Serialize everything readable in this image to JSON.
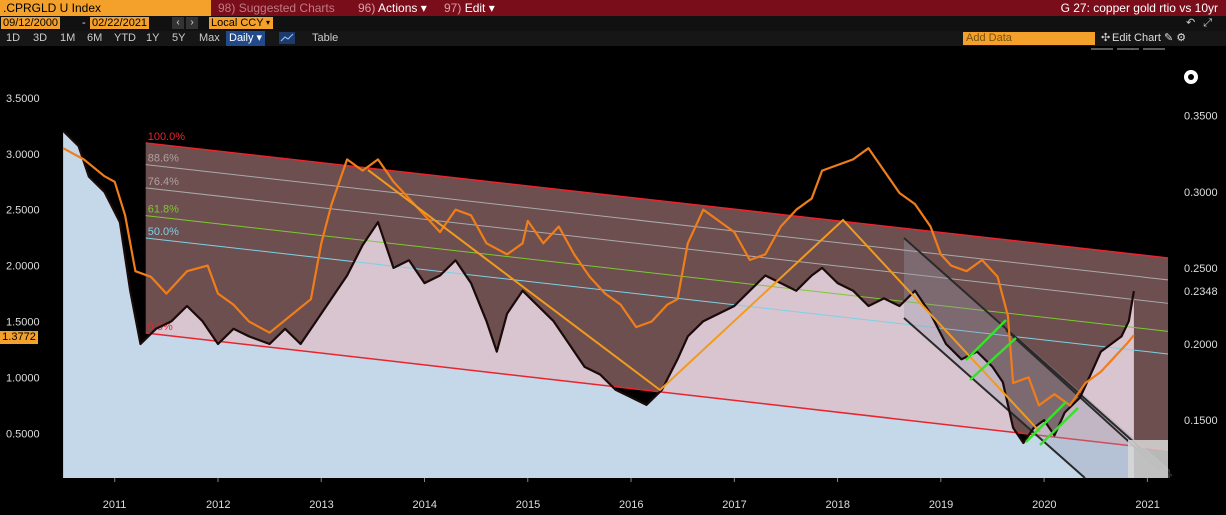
{
  "header": {
    "ticker": ".CPRGLD U Index",
    "suggested": "Suggested Charts",
    "suggested_num": "98)",
    "actions": "Actions",
    "actions_num": "96)",
    "edit": "Edit",
    "edit_num": "97)",
    "chart_title": "G 27: copper gold rtio vs 10yr"
  },
  "toolbar": {
    "start_date": "09/12/2000",
    "end_date": "02/22/2021",
    "currency": "Local CCY",
    "periods": [
      "1D",
      "3D",
      "1M",
      "6M",
      "YTD",
      "1Y",
      "5Y",
      "Max"
    ],
    "frequency": "Daily",
    "table": "Table",
    "add_data": "Add Data",
    "edit_chart": "Edit Chart",
    "current_value": "1.3772"
  },
  "colors": {
    "copper_gold_ratio": "#f07d1a",
    "ten_year_yield": "#1a0a0a",
    "channel": "#e8242e",
    "fib_61_8": "#7ec832",
    "fib_50": "#7fd0e6",
    "trendline": "#f29a1e",
    "wedge": "#2a2a2a",
    "green_marks": "#39e02b"
  },
  "chart_data": {
    "type": "line",
    "x_ticks": [
      "2011",
      "2012",
      "2013",
      "2014",
      "2015",
      "2016",
      "2017",
      "2018",
      "2019",
      "2020",
      "2021"
    ],
    "left_axis": {
      "ticks": [
        "3.5000",
        "3.0000",
        "2.5000",
        "2.0000",
        "1.5000",
        "1.0000",
        "0.5000"
      ],
      "last_value": "1.3772"
    },
    "right_axis": {
      "ticks": [
        "0.3500",
        "0.3000",
        "0.2500",
        "0.2348",
        "0.2000",
        "0.1500"
      ],
      "last_value": "0.2348"
    },
    "fib_levels": [
      "100.0%",
      "88.6%",
      "76.4%",
      "61.8%",
      "50.0%",
      "0.0%"
    ],
    "series": [
      {
        "color_key": "copper_gold_ratio",
        "points": [
          [
            2010.5,
            3.05
          ],
          [
            2010.7,
            2.95
          ],
          [
            2010.9,
            2.8
          ],
          [
            2011.0,
            2.75
          ],
          [
            2011.1,
            2.45
          ],
          [
            2011.2,
            1.95
          ],
          [
            2011.35,
            1.9
          ],
          [
            2011.5,
            1.75
          ],
          [
            2011.7,
            1.95
          ],
          [
            2011.9,
            2.0
          ],
          [
            2012.0,
            1.75
          ],
          [
            2012.15,
            1.65
          ],
          [
            2012.3,
            1.5
          ],
          [
            2012.5,
            1.4
          ],
          [
            2012.7,
            1.55
          ],
          [
            2012.9,
            1.7
          ],
          [
            2013.0,
            2.2
          ],
          [
            2013.1,
            2.55
          ],
          [
            2013.25,
            2.95
          ],
          [
            2013.4,
            2.85
          ],
          [
            2013.55,
            2.95
          ],
          [
            2013.7,
            2.75
          ],
          [
            2013.85,
            2.6
          ],
          [
            2014.0,
            2.45
          ],
          [
            2014.15,
            2.3
          ],
          [
            2014.3,
            2.5
          ],
          [
            2014.45,
            2.45
          ],
          [
            2014.6,
            2.2
          ],
          [
            2014.8,
            2.1
          ],
          [
            2014.95,
            2.2
          ],
          [
            2015.0,
            2.4
          ],
          [
            2015.15,
            2.2
          ],
          [
            2015.3,
            2.35
          ],
          [
            2015.45,
            2.1
          ],
          [
            2015.6,
            1.9
          ],
          [
            2015.75,
            1.75
          ],
          [
            2015.9,
            1.65
          ],
          [
            2016.05,
            1.45
          ],
          [
            2016.2,
            1.5
          ],
          [
            2016.35,
            1.65
          ],
          [
            2016.45,
            1.7
          ],
          [
            2016.55,
            2.2
          ],
          [
            2016.7,
            2.5
          ],
          [
            2016.85,
            2.4
          ],
          [
            2017.0,
            2.3
          ],
          [
            2017.15,
            2.05
          ],
          [
            2017.3,
            2.1
          ],
          [
            2017.45,
            2.35
          ],
          [
            2017.6,
            2.5
          ],
          [
            2017.75,
            2.6
          ],
          [
            2017.85,
            2.85
          ],
          [
            2018.0,
            2.9
          ],
          [
            2018.15,
            2.95
          ],
          [
            2018.3,
            3.05
          ],
          [
            2018.45,
            2.85
          ],
          [
            2018.6,
            2.65
          ],
          [
            2018.75,
            2.55
          ],
          [
            2018.9,
            2.35
          ],
          [
            2019.0,
            2.1
          ],
          [
            2019.1,
            2.0
          ],
          [
            2019.25,
            1.95
          ],
          [
            2019.4,
            2.05
          ],
          [
            2019.55,
            1.9
          ],
          [
            2019.65,
            1.55
          ],
          [
            2019.7,
            0.95
          ],
          [
            2019.85,
            1.0
          ],
          [
            2019.95,
            0.75
          ],
          [
            2020.1,
            0.85
          ],
          [
            2020.25,
            0.75
          ],
          [
            2020.4,
            0.95
          ],
          [
            2020.55,
            1.05
          ],
          [
            2020.7,
            1.2
          ],
          [
            2020.8,
            1.3
          ],
          [
            2020.87,
            1.3772
          ]
        ]
      },
      {
        "color_key": "ten_year_yield",
        "points": [
          [
            2010.5,
            0.34
          ],
          [
            2010.65,
            0.33
          ],
          [
            2010.75,
            0.31
          ],
          [
            2010.9,
            0.3
          ],
          [
            2011.05,
            0.28
          ],
          [
            2011.15,
            0.235
          ],
          [
            2011.25,
            0.2
          ],
          [
            2011.4,
            0.21
          ],
          [
            2011.55,
            0.215
          ],
          [
            2011.7,
            0.225
          ],
          [
            2011.85,
            0.215
          ],
          [
            2012.0,
            0.2
          ],
          [
            2012.15,
            0.21
          ],
          [
            2012.3,
            0.205
          ],
          [
            2012.5,
            0.2
          ],
          [
            2012.65,
            0.21
          ],
          [
            2012.8,
            0.2
          ],
          [
            2012.95,
            0.215
          ],
          [
            2013.1,
            0.23
          ],
          [
            2013.25,
            0.245
          ],
          [
            2013.4,
            0.265
          ],
          [
            2013.55,
            0.28
          ],
          [
            2013.7,
            0.25
          ],
          [
            2013.85,
            0.255
          ],
          [
            2014.0,
            0.24
          ],
          [
            2014.15,
            0.245
          ],
          [
            2014.3,
            0.255
          ],
          [
            2014.45,
            0.24
          ],
          [
            2014.6,
            0.215
          ],
          [
            2014.7,
            0.195
          ],
          [
            2014.8,
            0.22
          ],
          [
            2014.95,
            0.235
          ],
          [
            2015.1,
            0.225
          ],
          [
            2015.25,
            0.215
          ],
          [
            2015.4,
            0.2
          ],
          [
            2015.55,
            0.185
          ],
          [
            2015.7,
            0.18
          ],
          [
            2015.85,
            0.17
          ],
          [
            2016.0,
            0.165
          ],
          [
            2016.15,
            0.16
          ],
          [
            2016.3,
            0.17
          ],
          [
            2016.45,
            0.19
          ],
          [
            2016.55,
            0.205
          ],
          [
            2016.7,
            0.215
          ],
          [
            2016.85,
            0.22
          ],
          [
            2017.0,
            0.225
          ],
          [
            2017.15,
            0.235
          ],
          [
            2017.3,
            0.245
          ],
          [
            2017.45,
            0.24
          ],
          [
            2017.6,
            0.235
          ],
          [
            2017.75,
            0.245
          ],
          [
            2017.85,
            0.25
          ],
          [
            2018.0,
            0.24
          ],
          [
            2018.15,
            0.235
          ],
          [
            2018.3,
            0.225
          ],
          [
            2018.45,
            0.23
          ],
          [
            2018.6,
            0.225
          ],
          [
            2018.75,
            0.235
          ],
          [
            2018.9,
            0.22
          ],
          [
            2019.05,
            0.2
          ],
          [
            2019.2,
            0.19
          ],
          [
            2019.35,
            0.195
          ],
          [
            2019.5,
            0.185
          ],
          [
            2019.6,
            0.175
          ],
          [
            2019.7,
            0.145
          ],
          [
            2019.8,
            0.135
          ],
          [
            2019.9,
            0.145
          ],
          [
            2020.0,
            0.15
          ],
          [
            2020.1,
            0.14
          ],
          [
            2020.2,
            0.155
          ],
          [
            2020.35,
            0.165
          ],
          [
            2020.45,
            0.18
          ],
          [
            2020.55,
            0.195
          ],
          [
            2020.65,
            0.2
          ],
          [
            2020.75,
            0.205
          ],
          [
            2020.82,
            0.215
          ],
          [
            2020.87,
            0.2348
          ]
        ]
      }
    ],
    "x_range": [
      2010.47,
      2021.2
    ],
    "left_range": [
      0.1,
      3.75
    ],
    "right_range": [
      0.112,
      0.38
    ]
  }
}
